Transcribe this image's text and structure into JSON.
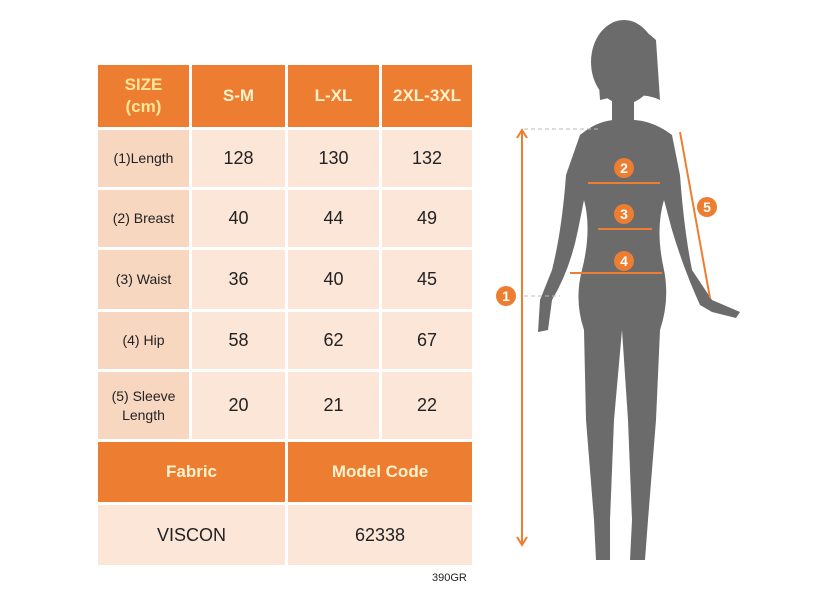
{
  "size_table": {
    "header": [
      "SIZE\n(cm)",
      "S-M",
      "L-XL",
      "2XL-3XL"
    ],
    "rows": [
      {
        "label": "(1)Length",
        "values": [
          "128",
          "130",
          "132"
        ]
      },
      {
        "label": "(2) Breast",
        "values": [
          "40",
          "44",
          "49"
        ]
      },
      {
        "label": "(3) Waist",
        "values": [
          "36",
          "40",
          "45"
        ]
      },
      {
        "label": "(4) Hip",
        "values": [
          "58",
          "62",
          "67"
        ]
      },
      {
        "label": "(5) Sleeve Length",
        "values": [
          "20",
          "21",
          "22"
        ]
      }
    ]
  },
  "info_table": {
    "fabric_label": "Fabric",
    "model_code_label": "Model Code",
    "fabric_value": "VISCON",
    "model_code_value": "62338"
  },
  "product_code": "390GR",
  "figure": {
    "markers": [
      "1",
      "2",
      "3",
      "4",
      "5"
    ],
    "silhouette_color": "#6B6B6B",
    "accent_color": "#ED7D31"
  }
}
